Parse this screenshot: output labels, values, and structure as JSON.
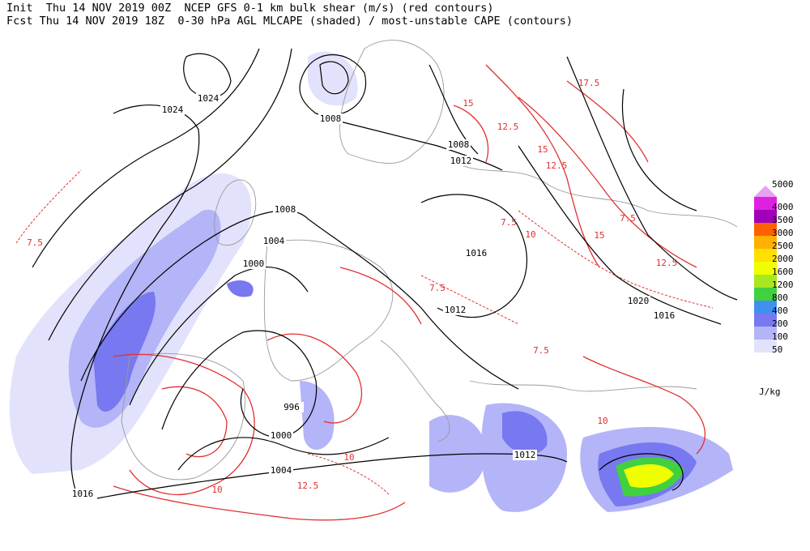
{
  "header": {
    "line1": "Init  Thu 14 NOV 2019 00Z  NCEP GFS 0-1 km bulk shear (m/s) (red contours)",
    "line2": "Fcst Thu 14 NOV 2019 18Z  0-30 hPa AGL MLCAPE (shaded) / most-unstable CAPE (contours)"
  },
  "isobar_labels": [
    1024,
    1024,
    1008,
    1008,
    1012,
    1008,
    1004,
    1000,
    1016,
    1012,
    1020,
    1016,
    996,
    1000,
    1004,
    1012,
    1016
  ],
  "shear_labels": [
    17.5,
    15,
    12.5,
    15,
    12.5,
    7.5,
    10,
    15,
    7.5,
    12.5,
    7.5,
    7.5,
    10,
    10,
    12.5,
    10,
    7.5
  ],
  "legend": {
    "items": [
      {
        "label": 5000,
        "color": "#e8a0f0"
      },
      {
        "label": 4000,
        "color": "#e020e0"
      },
      {
        "label": 3500,
        "color": "#a000b8"
      },
      {
        "label": 3000,
        "color": "#ff6000"
      },
      {
        "label": 2500,
        "color": "#ffb000"
      },
      {
        "label": 2000,
        "color": "#ffe000"
      },
      {
        "label": 1600,
        "color": "#f0ff00"
      },
      {
        "label": 1200,
        "color": "#a8e820"
      },
      {
        "label": 800,
        "color": "#40d040"
      },
      {
        "label": 400,
        "color": "#4090f0"
      },
      {
        "label": 200,
        "color": "#7878f0"
      },
      {
        "label": 100,
        "color": "#b4b4f8"
      },
      {
        "label": 50,
        "color": "#e2e2fc"
      }
    ],
    "unit": "J/kg"
  }
}
